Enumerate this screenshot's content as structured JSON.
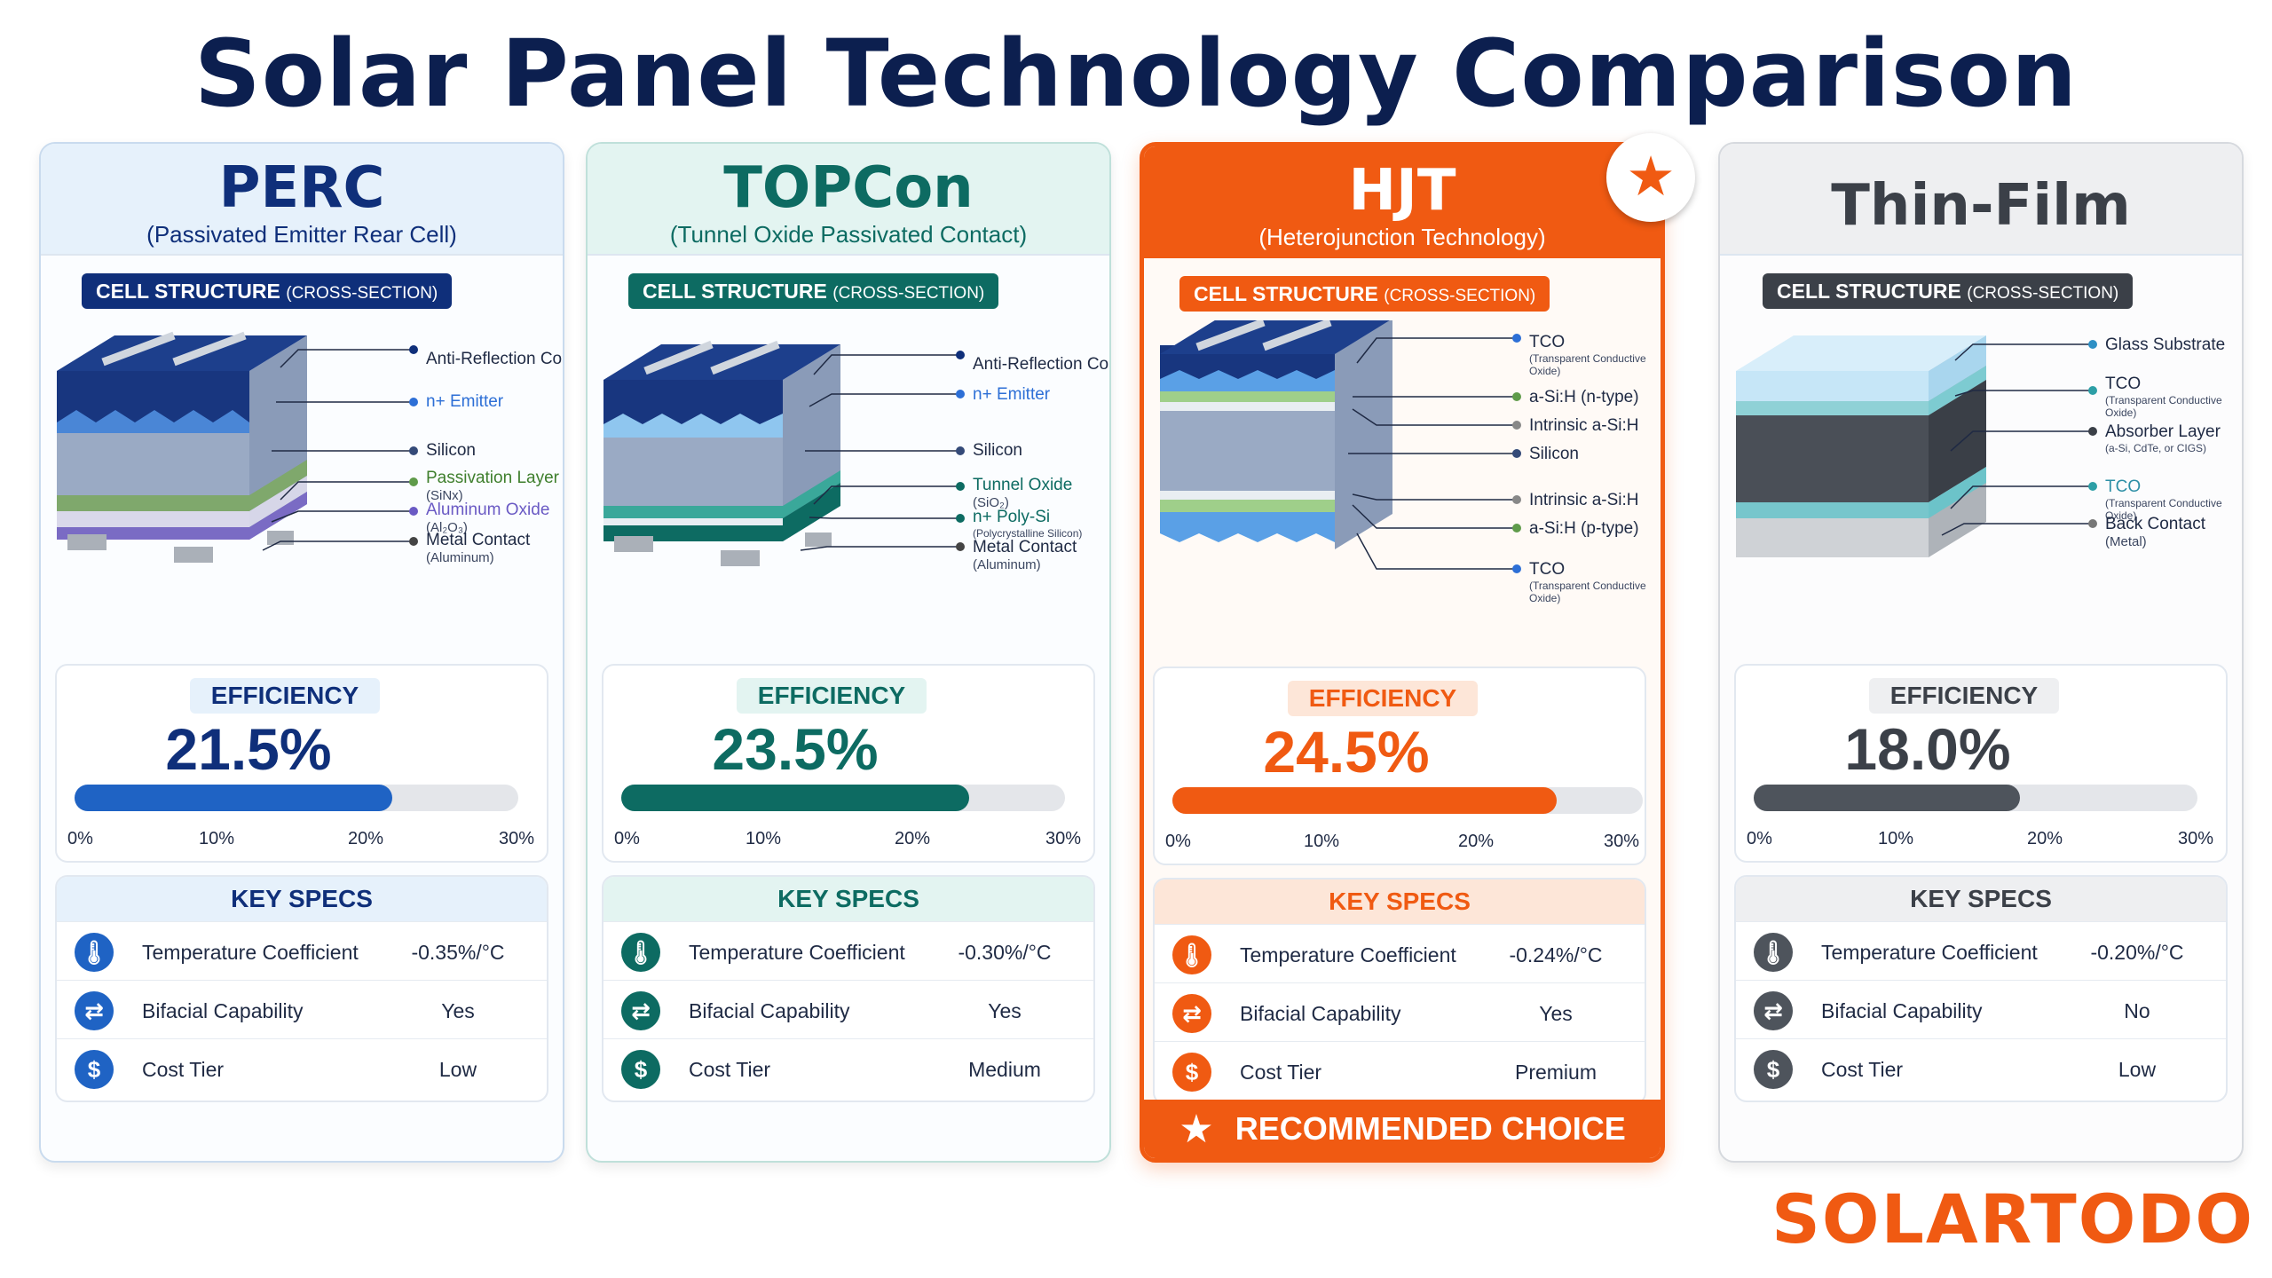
{
  "title": "Solar Panel Technology Comparison",
  "brand": "SOLARTODO",
  "structure_label": "CELL STRUCTURE",
  "structure_label_suffix": "(CROSS-SECTION)",
  "efficiency_label": "EFFICIENCY",
  "key_specs_label": "KEY SPECS",
  "axis_ticks": [
    "0%",
    "10%",
    "20%",
    "30%"
  ],
  "spec_names": [
    "Temperature Coefficient",
    "Bifacial Capability",
    "Cost Tier"
  ],
  "icons": [
    "thermometer-icon",
    "bifacial-arrows-icon",
    "dollar-icon"
  ],
  "recommended": {
    "label": "RECOMMENDED CHOICE",
    "icon": "star-icon"
  },
  "cards": [
    {
      "name": "PERC",
      "subtitle": "(Passivated Emitter Rear Cell)",
      "color": "#0f2f7a",
      "efficiency": "21.5%",
      "efficiency_value": 21.5,
      "layers": [
        {
          "label": "Anti-Reflection Coating",
          "sub": ""
        },
        {
          "label": "n+ Emitter",
          "sub": ""
        },
        {
          "label": "Silicon",
          "sub": ""
        },
        {
          "label": "Passivation Layer",
          "sub": "(SiNx)"
        },
        {
          "label": "Aluminum Oxide",
          "sub": "(Al₂O₃)"
        },
        {
          "label": "Metal Contact",
          "sub": "(Aluminum)"
        }
      ],
      "specs": [
        "-0.35%/°C",
        "Yes",
        "Low"
      ]
    },
    {
      "name": "TOPCon",
      "subtitle": "(Tunnel Oxide Passivated Contact)",
      "color": "#0d6b62",
      "efficiency": "23.5%",
      "efficiency_value": 23.5,
      "layers": [
        {
          "label": "Anti-Reflection Coating",
          "sub": ""
        },
        {
          "label": "n+ Emitter",
          "sub": ""
        },
        {
          "label": "Silicon",
          "sub": ""
        },
        {
          "label": "Tunnel Oxide",
          "sub": "(SiO₂)"
        },
        {
          "label": "n+ Poly-Si",
          "sub": "(Polycrystalline Silicon)"
        },
        {
          "label": "Metal Contact",
          "sub": "(Aluminum)"
        }
      ],
      "specs": [
        "-0.30%/°C",
        "Yes",
        "Medium"
      ]
    },
    {
      "name": "HJT",
      "subtitle": "(Heterojunction Technology)",
      "color": "#f05a12",
      "efficiency": "24.5%",
      "efficiency_value": 24.5,
      "layers": [
        {
          "label": "TCO",
          "sub": "(Transparent Conductive Oxide)"
        },
        {
          "label": "a-Si:H (n-type)",
          "sub": ""
        },
        {
          "label": "Intrinsic a-Si:H",
          "sub": ""
        },
        {
          "label": "Silicon",
          "sub": ""
        },
        {
          "label": "Intrinsic a-Si:H",
          "sub": ""
        },
        {
          "label": "a-Si:H (p-type)",
          "sub": ""
        },
        {
          "label": "TCO",
          "sub": "(Transparent Conductive Oxide)"
        }
      ],
      "specs": [
        "-0.24%/°C",
        "Yes",
        "Premium"
      ]
    },
    {
      "name": "Thin-Film",
      "subtitle": "",
      "color": "#3b4048",
      "efficiency": "18.0%",
      "efficiency_value": 18.0,
      "layers": [
        {
          "label": "Glass Substrate",
          "sub": ""
        },
        {
          "label": "TCO",
          "sub": "(Transparent Conductive Oxide)"
        },
        {
          "label": "Absorber Layer",
          "sub": "(a-Si, CdTe, or CIGS)"
        },
        {
          "label": "TCO",
          "sub": "(Transparent Conductive Oxide)"
        },
        {
          "label": "Back Contact",
          "sub": "(Metal)"
        }
      ],
      "specs": [
        "-0.20%/°C",
        "No",
        "Low"
      ]
    }
  ]
}
